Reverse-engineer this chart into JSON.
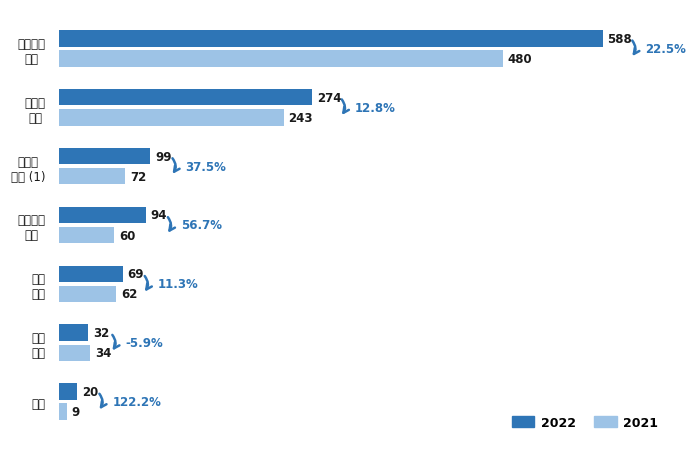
{
  "categories": [
    "综合项目\n总数",
    "单克隆\n抗体",
    "双特异\n抗体 (1)",
    "抗体偶联\n药物",
    "融合\n蛋白",
    "其他\n蛋白",
    "疫苗"
  ],
  "values_2022": [
    588,
    274,
    99,
    94,
    69,
    32,
    20
  ],
  "values_2021": [
    480,
    243,
    72,
    60,
    62,
    34,
    9
  ],
  "growth": [
    "22.5%",
    "12.8%",
    "37.5%",
    "56.7%",
    "11.3%",
    "-5.9%",
    "122.2%"
  ],
  "color_2022": "#2E75B6",
  "color_2021": "#9DC3E6",
  "background": "#ffffff",
  "bar_height": 0.28,
  "bar_gap": 0.06,
  "max_val": 660,
  "legend_2022": "2022",
  "legend_2021": "2021",
  "text_color": "#1a1a1a",
  "growth_color": "#2E75B6"
}
